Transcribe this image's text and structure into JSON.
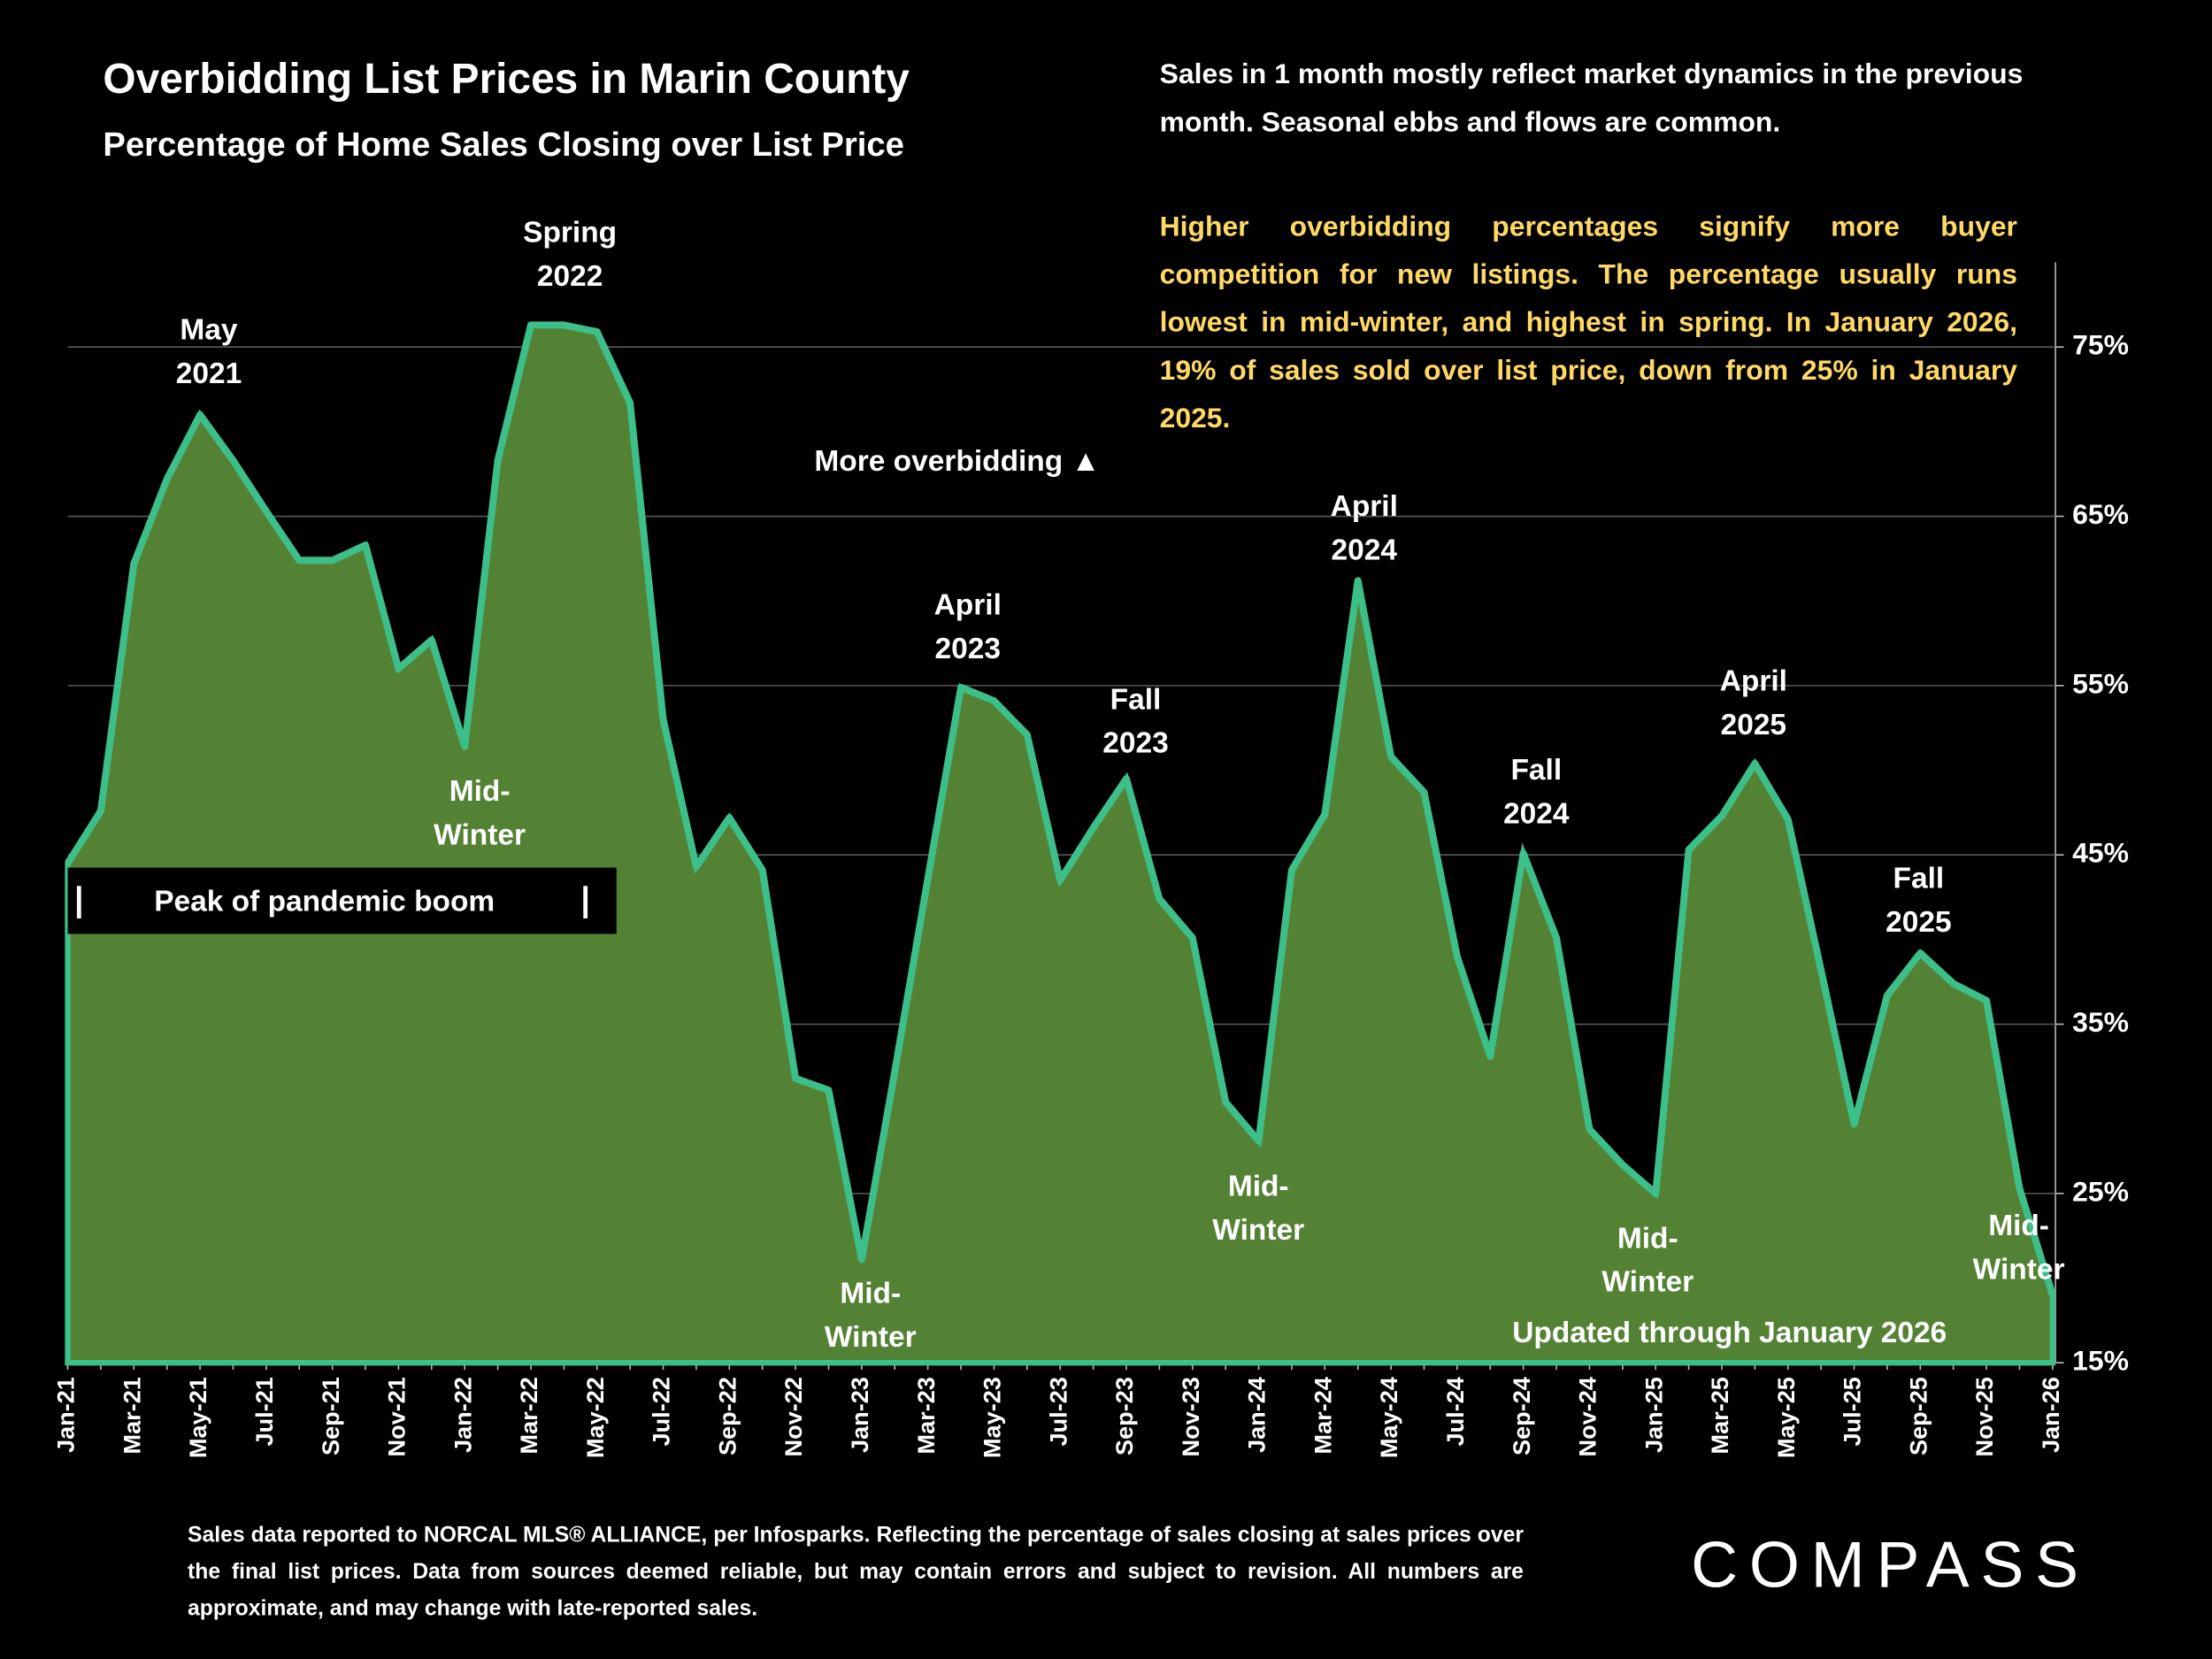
{
  "chart_data": {
    "type": "area",
    "title": "Overbidding List Prices in Marin County",
    "subtitle": "Percentage of Home Sales Closing over List Price",
    "categories": [
      "Jan-21",
      null,
      "Mar-21",
      null,
      "May-21",
      null,
      "Jul-21",
      null,
      "Sep-21",
      null,
      "Nov-21",
      null,
      "Jan-22",
      null,
      "Mar-22",
      null,
      "May-22",
      null,
      "Jul-22",
      null,
      "Sep-22",
      null,
      "Nov-22",
      null,
      "Jan-23",
      null,
      "Mar-23",
      null,
      "May-23",
      null,
      "Jul-23",
      null,
      "Sep-23",
      null,
      "Nov-23",
      null,
      "Jan-24",
      null,
      "Mar-24",
      null,
      "May-24",
      null,
      "Jul-24",
      null,
      "Sep-24",
      null,
      "Nov-24",
      null,
      "Jan-25",
      null,
      "Mar-25",
      null,
      "May-25",
      null,
      "Jul-25",
      null,
      "Sep-25",
      null,
      "Nov-25",
      null,
      "Jan-26"
    ],
    "values": [
      44.5,
      47.6,
      62.2,
      67.2,
      71.0,
      68.3,
      65.3,
      62.4,
      62.4,
      63.3,
      56.0,
      57.7,
      51.4,
      68.3,
      76.3,
      76.3,
      75.9,
      71.7,
      53.0,
      44.3,
      47.2,
      44.1,
      31.8,
      31.1,
      21.1,
      32.2,
      43.6,
      54.9,
      54.1,
      52.1,
      43.5,
      46.6,
      49.5,
      42.4,
      40.1,
      30.4,
      28.1,
      44.1,
      47.4,
      61.2,
      50.8,
      48.7,
      39.0,
      33.1,
      45.1,
      40.1,
      28.8,
      26.7,
      25,
      45.3,
      47.3,
      50.4,
      47.1,
      38.2,
      29.1,
      36.7,
      39.2,
      37.4,
      36.4,
      25.3,
      19
    ],
    "color": "#3dbf8a",
    "fill_color": "#548235",
    "ylim": [
      15,
      80
    ],
    "yticks": [
      {
        "value": 15,
        "label": "15%"
      },
      {
        "value": 25,
        "label": "25%"
      },
      {
        "value": 35,
        "label": "35%"
      },
      {
        "value": 45,
        "label": "45%"
      },
      {
        "value": 55,
        "label": "55%"
      },
      {
        "value": 65,
        "label": "65%"
      },
      {
        "value": 75,
        "label": "75%"
      }
    ],
    "grid": true,
    "annotations": [
      [
        "May",
        "2021"
      ],
      [
        "Spring",
        "2022"
      ],
      [
        "Mid-",
        "Winter"
      ],
      [
        "Mid-",
        "Winter"
      ],
      [
        "April",
        "2023"
      ],
      [
        "Fall",
        "2023"
      ],
      [
        "Mid-",
        "Winter"
      ],
      [
        "April",
        "2024"
      ],
      [
        "Fall",
        "2024"
      ],
      [
        "Mid-",
        "Winter"
      ],
      [
        "April",
        "2025"
      ],
      [
        "Fall",
        "2025"
      ],
      [
        "Mid-",
        "Winter"
      ]
    ],
    "more_overbidding": "More overbidding ▲",
    "peak_label": "Peak of pandemic boom",
    "updated": "Updated through January 2026"
  },
  "notes": [
    "Sales in 1 month mostly reflect market dynamics in the previous month. Seasonal ebbs and flows are common.",
    "Higher overbidding percentages signify more buyer competition for new listings. The percentage usually runs lowest in mid-winter, and highest in spring. In January 2026, 19% of sales sold over list price, down from 25% in January 2025."
  ],
  "footer": {
    "source": "Sales data reported to NORCAL MLS® ALLIANCE, per Infosparks. Reflecting the percentage of sales closing at sales prices over the final list prices. Data from sources deemed reliable, but may contain errors and subject to revision. All numbers are approximate, and may change with late-reported sales.",
    "logo": "COMPASS"
  }
}
